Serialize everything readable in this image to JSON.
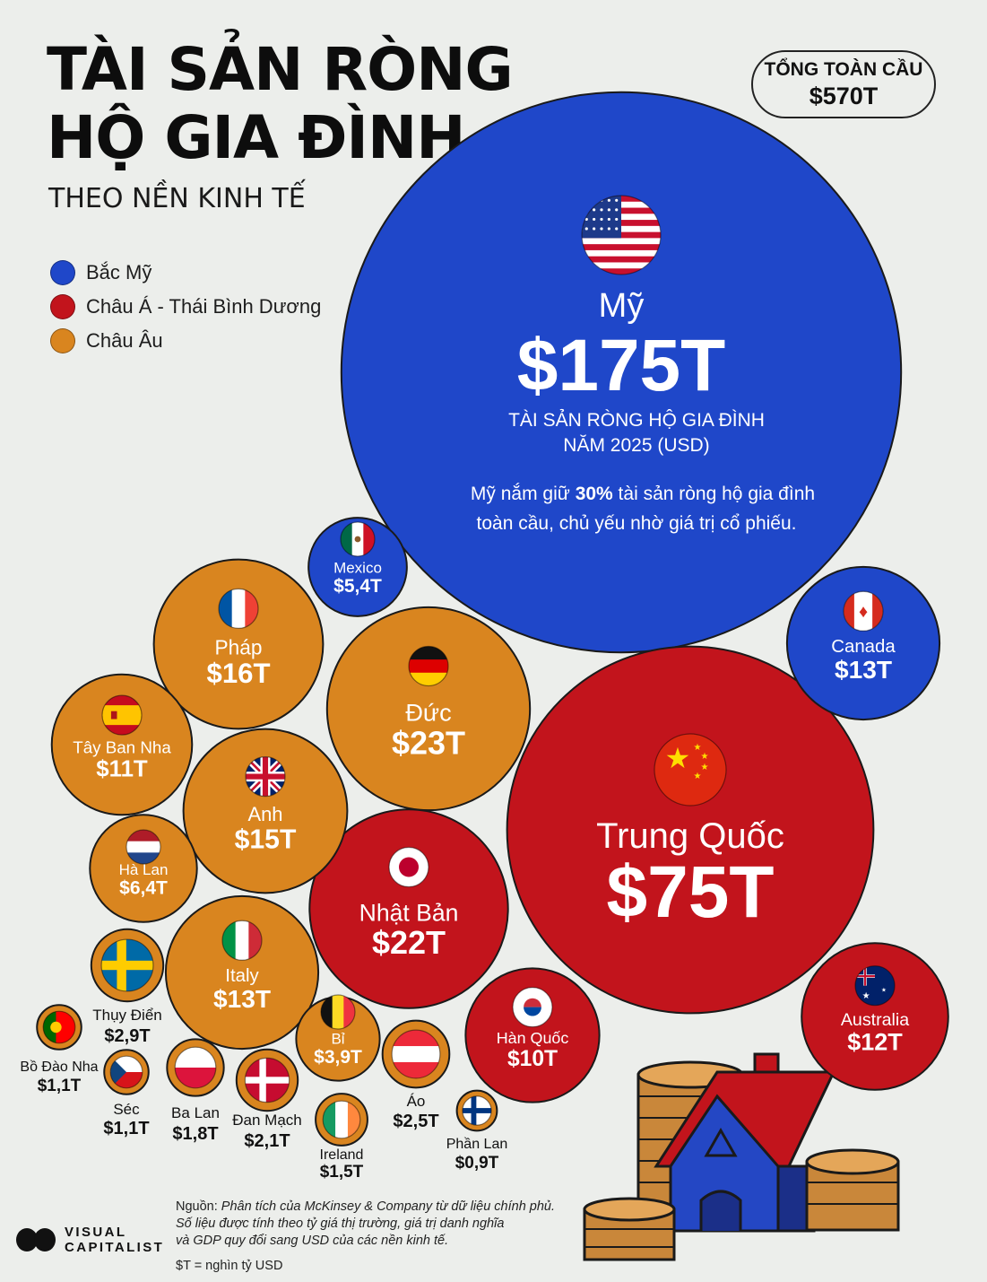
{
  "header": {
    "title_line1": "TÀI SẢN RÒNG",
    "title_line2": "HỘ GIA ĐÌNH",
    "subtitle": "THEO NỀN KINH TẾ"
  },
  "total_box": {
    "label": "TỔNG TOÀN CẦU",
    "value": "$570T"
  },
  "legend": [
    {
      "label": "Bắc Mỹ",
      "color": "#1f47c9"
    },
    {
      "label": "Châu Á - Thái Bình Dương",
      "color": "#c2141c"
    },
    {
      "label": "Châu Âu",
      "color": "#d9851f"
    }
  ],
  "chart_data": {
    "type": "bubble",
    "unit_note": "$T = nghìn tỷ USD",
    "highlight": {
      "name": "Mỹ",
      "value_label": "$175T",
      "caption_line1": "TÀI SẢN RÒNG HỘ GIA ĐÌNH",
      "caption_line2": "NĂM 2025 (USD)",
      "note_line1_pre": "Mỹ nắm giữ ",
      "note_line1_bold": "30%",
      "note_line1_post": " tài sản ròng hộ gia đình",
      "note_line2": "toàn cầu, chủ yếu nhờ giá trị cổ phiếu."
    },
    "bubbles": [
      {
        "id": "us",
        "name": "Mỹ",
        "value": 175,
        "label": "$175T",
        "region": "Bắc Mỹ",
        "flag": "us-flag-icon"
      },
      {
        "id": "cn",
        "name": "Trung Quốc",
        "value": 75,
        "label": "$75T",
        "region": "Châu Á - Thái Bình Dương",
        "flag": "china-flag-icon"
      },
      {
        "id": "de",
        "name": "Đức",
        "value": 23,
        "label": "$23T",
        "region": "Châu Âu",
        "flag": "germany-flag-icon"
      },
      {
        "id": "jp",
        "name": "Nhật Bản",
        "value": 22,
        "label": "$22T",
        "region": "Châu Á - Thái Bình Dương",
        "flag": "japan-flag-icon"
      },
      {
        "id": "fr",
        "name": "Pháp",
        "value": 16,
        "label": "$16T",
        "region": "Châu Âu",
        "flag": "france-flag-icon"
      },
      {
        "id": "gb",
        "name": "Anh",
        "value": 15,
        "label": "$15T",
        "region": "Châu Âu",
        "flag": "uk-flag-icon"
      },
      {
        "id": "ca",
        "name": "Canada",
        "value": 13,
        "label": "$13T",
        "region": "Bắc Mỹ",
        "flag": "canada-flag-icon"
      },
      {
        "id": "it",
        "name": "Italy",
        "value": 13,
        "label": "$13T",
        "region": "Châu Âu",
        "flag": "italy-flag-icon"
      },
      {
        "id": "au",
        "name": "Australia",
        "value": 12,
        "label": "$12T",
        "region": "Châu Á - Thái Bình Dương",
        "flag": "australia-flag-icon"
      },
      {
        "id": "es",
        "name": "Tây Ban Nha",
        "value": 11,
        "label": "$11T",
        "region": "Châu Âu",
        "flag": "spain-flag-icon"
      },
      {
        "id": "kr",
        "name": "Hàn Quốc",
        "value": 10,
        "label": "$10T",
        "region": "Châu Á - Thái Bình Dương",
        "flag": "korea-flag-icon"
      },
      {
        "id": "nl",
        "name": "Hà Lan",
        "value": 6.4,
        "label": "$6,4T",
        "region": "Châu Âu",
        "flag": "netherlands-flag-icon"
      },
      {
        "id": "mx",
        "name": "Mexico",
        "value": 5.4,
        "label": "$5,4T",
        "region": "Bắc Mỹ",
        "flag": "mexico-flag-icon"
      },
      {
        "id": "be",
        "name": "Bỉ",
        "value": 3.9,
        "label": "$3,9T",
        "region": "Châu Âu",
        "flag": "belgium-flag-icon"
      },
      {
        "id": "se",
        "name": "Thụy Điển",
        "value": 2.9,
        "label": "$2,9T",
        "region": "Châu Âu",
        "flag": "sweden-flag-icon"
      },
      {
        "id": "at",
        "name": "Áo",
        "value": 2.5,
        "label": "$2,5T",
        "region": "Châu Âu",
        "flag": "austria-flag-icon"
      },
      {
        "id": "dk",
        "name": "Đan Mạch",
        "value": 2.1,
        "label": "$2,1T",
        "region": "Châu Âu",
        "flag": "denmark-flag-icon"
      },
      {
        "id": "pl",
        "name": "Ba Lan",
        "value": 1.8,
        "label": "$1,8T",
        "region": "Châu Âu",
        "flag": "poland-flag-icon"
      },
      {
        "id": "ie",
        "name": "Ireland",
        "value": 1.5,
        "label": "$1,5T",
        "region": "Châu Âu",
        "flag": "ireland-flag-icon"
      },
      {
        "id": "pt",
        "name": "Bồ Đào Nha",
        "value": 1.1,
        "label": "$1,1T",
        "region": "Châu Âu",
        "flag": "portugal-flag-icon"
      },
      {
        "id": "cz",
        "name": "Séc",
        "value": 1.1,
        "label": "$1,1T",
        "region": "Châu Âu",
        "flag": "czech-flag-icon"
      },
      {
        "id": "fi",
        "name": "Phần Lan",
        "value": 0.9,
        "label": "$0,9T",
        "region": "Châu Âu",
        "flag": "finland-flag-icon"
      }
    ]
  },
  "footer": {
    "source_prefix": "Nguồn: ",
    "source_text": "Phân tích của McKinsey & Company từ dữ liệu chính phủ.",
    "note_line1": "Số liệu được tính theo tỷ giá thị trường, giá trị danh nghĩa",
    "note_line2": "và GDP quy đổi sang USD của các nền kinh tế.",
    "unit": "$T = nghìn tỷ USD",
    "brand_line1": "VISUAL",
    "brand_line2": "CAPITALIST"
  }
}
